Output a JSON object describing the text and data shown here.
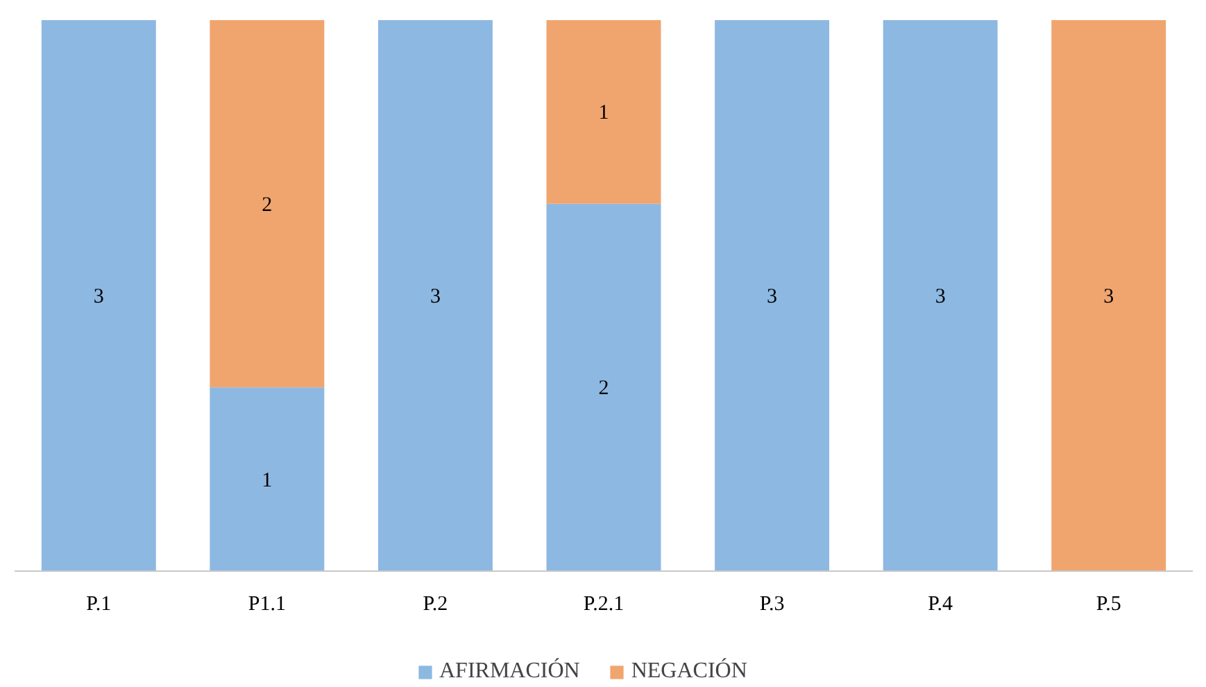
{
  "chart_data": {
    "type": "bar",
    "stacked": true,
    "data_labels": true,
    "legend": "bottom",
    "grid": false,
    "categories": [
      "P.1",
      "P1.1",
      "P.2",
      "P.2.1",
      "P.3",
      "P.4",
      "P.5"
    ],
    "series": [
      {
        "name": "AFIRMACIÓN",
        "color": "#8db8e2",
        "values": [
          3,
          1,
          3,
          2,
          3,
          3,
          null
        ]
      },
      {
        "name": "NEGACIÓN",
        "color": "#f0a56f",
        "values": [
          null,
          2,
          null,
          1,
          null,
          null,
          3
        ]
      }
    ]
  }
}
